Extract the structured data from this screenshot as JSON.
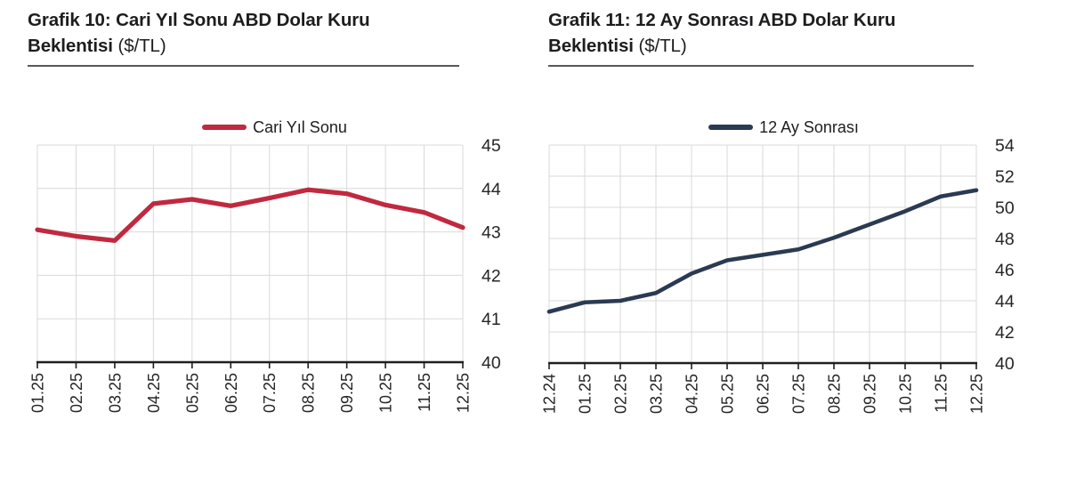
{
  "colors": {
    "red": "#c0293f",
    "navy": "#2b3a52",
    "gridline": "#d9d9d9",
    "axis": "#1f1f1f",
    "tick_text": "#262626",
    "title_text": "#1d1d1f",
    "rule": "#58595b"
  },
  "chart_data": [
    {
      "type": "line",
      "title_line1": "Grafik 10: Cari Yıl Sonu ABD Dolar Kuru",
      "title_line2": "Beklentisi",
      "title_unit": "($/TL)",
      "legend": "Cari Yıl Sonu",
      "legend_position": "top",
      "line_color": "#c0293f",
      "line_width": 5.2,
      "categories": [
        "01.25",
        "02.25",
        "03.25",
        "04.25",
        "05.25",
        "06.25",
        "07.25",
        "08.25",
        "09.25",
        "10.25",
        "11.25",
        "12.25"
      ],
      "series": [
        {
          "name": "Cari Yıl Sonu",
          "values": [
            43.05,
            42.9,
            42.8,
            43.65,
            43.75,
            43.6,
            43.78,
            43.97,
            43.88,
            43.62,
            43.45,
            43.1
          ]
        }
      ],
      "xlabel": "",
      "ylabel": "",
      "ylim": [
        40,
        45
      ],
      "yticks": [
        40,
        41,
        42,
        43,
        44,
        45
      ],
      "yaxis_side": "right",
      "x_tick_rotation": -90,
      "grid": true
    },
    {
      "type": "line",
      "title_line1": "Grafik 11: 12 Ay Sonrası ABD Dolar Kuru",
      "title_line2": "Beklentisi",
      "title_unit": "($/TL)",
      "legend": "12 Ay Sonrası",
      "legend_position": "top",
      "line_color": "#2b3a52",
      "line_width": 4.6,
      "categories": [
        "12.24",
        "01.25",
        "02.25",
        "03.25",
        "04.25",
        "05.25",
        "06.25",
        "07.25",
        "08.25",
        "09.25",
        "10.25",
        "11.25",
        "12.25"
      ],
      "series": [
        {
          "name": "12 Ay Sonrası",
          "values": [
            43.3,
            43.9,
            44.0,
            44.5,
            45.75,
            46.6,
            46.95,
            47.3,
            48.05,
            48.9,
            49.75,
            50.7,
            51.1
          ]
        }
      ],
      "xlabel": "",
      "ylabel": "",
      "ylim": [
        40,
        54
      ],
      "yticks": [
        40,
        42,
        44,
        46,
        48,
        50,
        52,
        54
      ],
      "yaxis_side": "right",
      "x_tick_rotation": -90,
      "grid": true
    }
  ]
}
